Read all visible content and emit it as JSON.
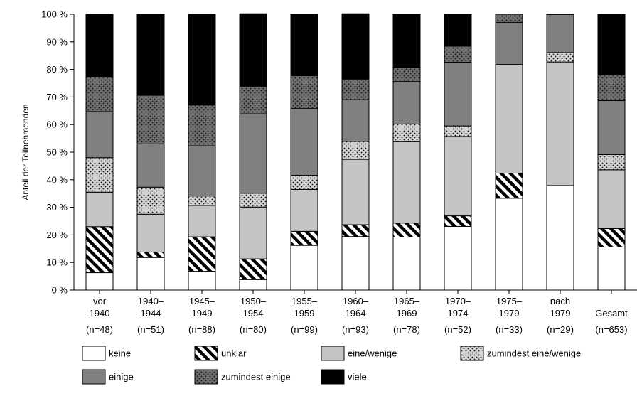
{
  "chart_data": {
    "type": "bar",
    "stacked": true,
    "percent": true,
    "ylabel": "Anteil der Teilnehmenden",
    "ylim": [
      0,
      100
    ],
    "yticks": [
      "0 %",
      "10 %",
      "20 %",
      "30 %",
      "40 %",
      "50 %",
      "60 %",
      "70 %",
      "80 %",
      "90 %",
      "100 %"
    ],
    "grid": false,
    "legend_position": "bottom",
    "categories": [
      {
        "line1": "vor",
        "line2": "1940",
        "n": "(n=48)"
      },
      {
        "line1": "1940–",
        "line2": "1944",
        "n": "(n=51)"
      },
      {
        "line1": "1945–",
        "line2": "1949",
        "n": "(n=88)"
      },
      {
        "line1": "1950–",
        "line2": "1954",
        "n": "(n=80)"
      },
      {
        "line1": "1955–",
        "line2": "1959",
        "n": "(n=99)"
      },
      {
        "line1": "1960–",
        "line2": "1964",
        "n": "(n=93)"
      },
      {
        "line1": "1965–",
        "line2": "1969",
        "n": "(n=78)"
      },
      {
        "line1": "1970–",
        "line2": "1974",
        "n": "(n=52)"
      },
      {
        "line1": "1975–",
        "line2": "1979",
        "n": "(n=33)"
      },
      {
        "line1": "nach",
        "line2": "1979",
        "n": "(n=29)"
      },
      {
        "line1": "",
        "line2": "Gesamt",
        "n": "(n=653)"
      }
    ],
    "series": [
      {
        "name": "keine",
        "pattern": "white",
        "values": [
          6.3,
          11.8,
          6.8,
          3.8,
          16.2,
          19.4,
          19.2,
          23.1,
          33.3,
          37.9,
          15.6
        ]
      },
      {
        "name": "unklar",
        "pattern": "hatch",
        "values": [
          16.7,
          2.0,
          12.5,
          7.5,
          5.1,
          4.3,
          5.1,
          3.8,
          9.1,
          0,
          6.7
        ]
      },
      {
        "name": "eine/wenige",
        "pattern": "light-gray",
        "values": [
          12.5,
          13.7,
          11.4,
          18.8,
          15.2,
          23.7,
          29.5,
          28.8,
          39.4,
          44.8,
          21.3
        ]
      },
      {
        "name": "zumindest eine/wenige",
        "pattern": "dots-light",
        "values": [
          12.5,
          9.8,
          3.4,
          5.0,
          5.1,
          6.5,
          6.4,
          3.8,
          0,
          3.4,
          5.5
        ]
      },
      {
        "name": "einige",
        "pattern": "dark-gray",
        "values": [
          16.7,
          15.7,
          18.2,
          28.8,
          24.2,
          15.1,
          15.4,
          23.1,
          15.2,
          13.8,
          19.6
        ]
      },
      {
        "name": "zumindest einige",
        "pattern": "dots-dark",
        "values": [
          12.5,
          17.6,
          14.8,
          10.0,
          11.9,
          7.5,
          5.1,
          5.8,
          3.0,
          0,
          9.3
        ]
      },
      {
        "name": "viele",
        "pattern": "black",
        "values": [
          22.9,
          29.4,
          33.0,
          26.3,
          22.2,
          23.7,
          19.2,
          11.5,
          0,
          0,
          22.0
        ]
      }
    ],
    "colors": {
      "white": "#ffffff",
      "light_gray": "#c4c4c4",
      "dark_gray": "#808080",
      "black": "#000000",
      "dots_light_bg": "#d2d2d2",
      "dots_dark_bg": "#6e6e6e"
    }
  }
}
